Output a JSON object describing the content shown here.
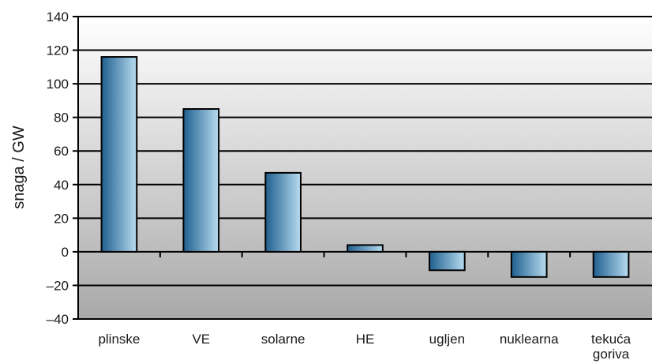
{
  "chart_data": {
    "type": "bar",
    "categories": [
      "plinske",
      "VE",
      "solarne",
      "HE",
      "ugljen",
      "nuklearna",
      "tekuća goriva"
    ],
    "category_lines": [
      [
        "plinske"
      ],
      [
        "VE"
      ],
      [
        "solarne"
      ],
      [
        "HE"
      ],
      [
        "ugljen"
      ],
      [
        "nuklearna"
      ],
      [
        "tekuća",
        "goriva"
      ]
    ],
    "values": [
      116,
      85,
      47,
      4,
      -11,
      -15,
      -15
    ],
    "ylabel": "snaga / GW",
    "xlabel": "",
    "ylim": [
      -40,
      140
    ],
    "yticks": [
      140,
      120,
      100,
      80,
      60,
      40,
      20,
      0,
      -20,
      -40
    ],
    "grid": true,
    "legend": "none",
    "colors": {
      "bar_dark": "#1f5f8f",
      "bar_light": "#b8dcf0",
      "bar_border": "#000000",
      "plot_top": "#ffffff",
      "plot_bottom": "#a9a9a9",
      "grid": "#000000"
    }
  }
}
